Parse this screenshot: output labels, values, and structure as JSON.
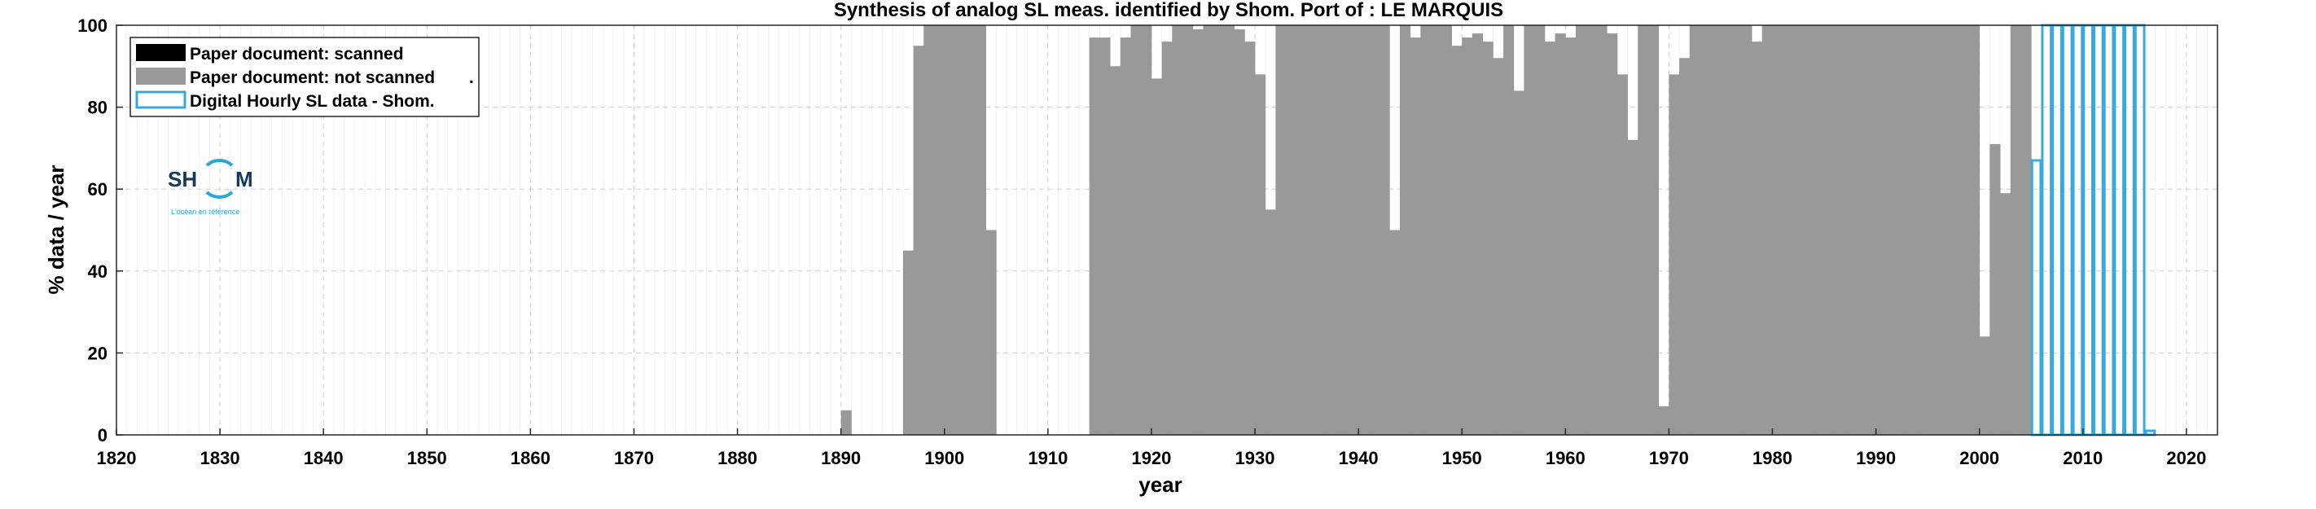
{
  "chart_data": {
    "type": "bar",
    "title": "Synthesis of analog SL meas. identified by Shom. Port of : LE MARQUIS",
    "xlabel": "year",
    "ylabel": "% data / year",
    "xlim": [
      1820,
      2023
    ],
    "ylim": [
      0,
      100
    ],
    "xticks": [
      1820,
      1830,
      1840,
      1850,
      1860,
      1870,
      1880,
      1890,
      1900,
      1910,
      1920,
      1930,
      1940,
      1950,
      1960,
      1970,
      1980,
      1990,
      2000,
      2010,
      2020
    ],
    "yticks": [
      0,
      20,
      40,
      60,
      80,
      100
    ],
    "grid": true,
    "legend_position": "top-left",
    "legend": [
      {
        "label": "Paper document: scanned",
        "style": "filled",
        "color": "#000000"
      },
      {
        "label": "Paper document: not scanned",
        "style": "filled",
        "color": "#999999"
      },
      {
        "label": "Digital Hourly SL data - Shom.",
        "style": "outline",
        "color": "#3aa8e0"
      }
    ],
    "legend_dot": ".",
    "series": [
      {
        "name": "Paper document: scanned",
        "color": "#000000",
        "x": [],
        "values": []
      },
      {
        "name": "Paper document: not scanned",
        "color": "#999999",
        "x": [
          1890,
          1896,
          1897,
          1898,
          1899,
          1900,
          1901,
          1902,
          1903,
          1904,
          1914,
          1915,
          1916,
          1917,
          1918,
          1919,
          1920,
          1921,
          1922,
          1923,
          1924,
          1925,
          1926,
          1927,
          1928,
          1929,
          1930,
          1931,
          1932,
          1933,
          1934,
          1935,
          1936,
          1937,
          1938,
          1939,
          1940,
          1941,
          1942,
          1943,
          1944,
          1945,
          1946,
          1947,
          1948,
          1949,
          1950,
          1951,
          1952,
          1953,
          1954,
          1955,
          1956,
          1957,
          1958,
          1959,
          1960,
          1961,
          1962,
          1963,
          1964,
          1965,
          1966,
          1967,
          1968,
          1969,
          1970,
          1971,
          1972,
          1973,
          1974,
          1975,
          1976,
          1977,
          1978,
          1979,
          1980,
          1981,
          1982,
          1983,
          1984,
          1985,
          1986,
          1987,
          1988,
          1989,
          1990,
          1991,
          1992,
          1993,
          1994,
          1995,
          1996,
          1997,
          1998,
          1999,
          2000,
          2001,
          2002,
          2003,
          2004
        ],
        "values": [
          6,
          45,
          95,
          100,
          100,
          100,
          100,
          100,
          100,
          50,
          97,
          97,
          90,
          97,
          100,
          100,
          87,
          96,
          100,
          100,
          99,
          100,
          100,
          100,
          99,
          96,
          88,
          55,
          100,
          100,
          100,
          100,
          100,
          100,
          100,
          100,
          100,
          100,
          100,
          50,
          100,
          97,
          100,
          100,
          100,
          95,
          97,
          98,
          96,
          92,
          100,
          84,
          100,
          100,
          96,
          98,
          97,
          100,
          100,
          100,
          98,
          88,
          72,
          100,
          100,
          7,
          88,
          92,
          100,
          100,
          100,
          100,
          100,
          100,
          96,
          100,
          100,
          100,
          100,
          100,
          100,
          100,
          100,
          100,
          100,
          100,
          100,
          100,
          100,
          100,
          100,
          100,
          100,
          100,
          100,
          100,
          24,
          71,
          59,
          100,
          100
        ]
      },
      {
        "name": "Digital Hourly SL data - Shom.",
        "color": "#3aa8e0",
        "x": [
          2005,
          2006,
          2007,
          2008,
          2009,
          2010,
          2011,
          2012,
          2013,
          2014,
          2015,
          2016
        ],
        "values": [
          67,
          100,
          100,
          100,
          100,
          100,
          100,
          100,
          100,
          100,
          100,
          1
        ]
      }
    ]
  },
  "logo": {
    "text_left": "SH",
    "text_right": "M",
    "tagline": "L'océan en référence"
  }
}
